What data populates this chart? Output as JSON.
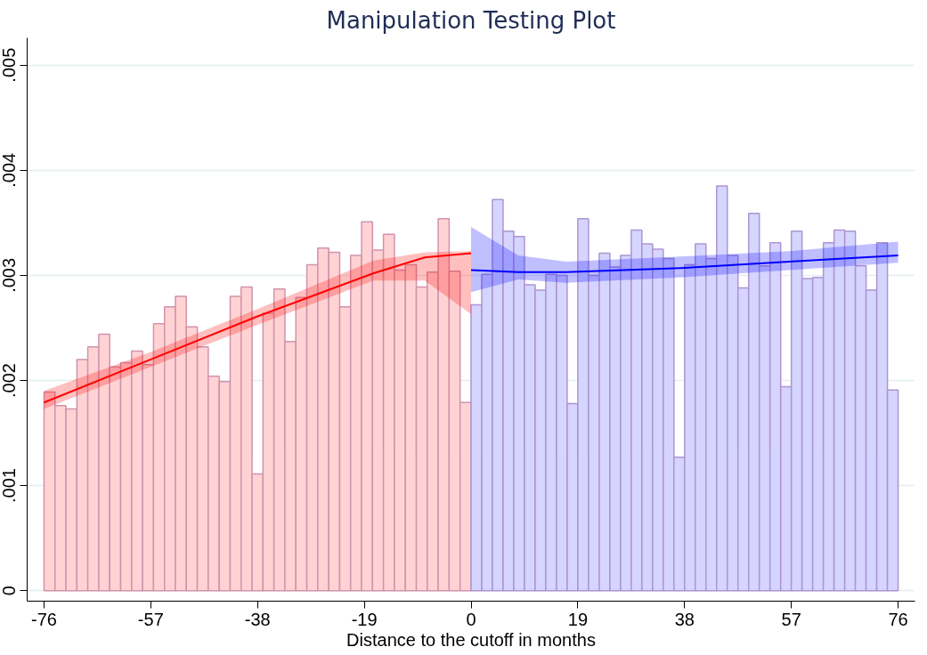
{
  "chart_data": {
    "type": "histogram",
    "title": "Manipulation Testing Plot",
    "xlabel": "Distance to the cutoff in months",
    "xlim": [
      -79,
      79
    ],
    "ylim": [
      -0.0001,
      0.00526
    ],
    "xticks": [
      -76,
      -57,
      -38,
      -19,
      0,
      19,
      38,
      57,
      76
    ],
    "yticks": [
      {
        "value": 0,
        "label": "0"
      },
      {
        "value": 0.001,
        "label": ".001"
      },
      {
        "value": 0.002,
        "label": ".002"
      },
      {
        "value": 0.003,
        "label": ".003"
      },
      {
        "value": 0.004,
        "label": ".004"
      },
      {
        "value": 0.005,
        "label": ".005"
      }
    ],
    "grid": "y",
    "series": [
      {
        "color": "#ffd3d3",
        "bins": [
          -76,
          -74.05,
          -72.1,
          -70.15,
          -68.21,
          -66.26,
          -64.31,
          -62.36,
          -60.41,
          -58.46,
          -56.51,
          -54.56,
          -52.62,
          -50.67,
          -48.72,
          -46.77,
          -44.82,
          -42.87,
          -40.92,
          -38.97,
          -37.03,
          -35.08,
          -33.13,
          -31.18,
          -29.23,
          -27.28,
          -25.33,
          -23.38,
          -21.44,
          -19.49,
          -17.54,
          -15.59,
          -13.64,
          -11.69,
          -9.74,
          -7.79,
          -5.85,
          -3.9,
          -1.95,
          0
        ],
        "values": [
          0.00189,
          0.00176,
          0.00173,
          0.0022,
          0.00232,
          0.00244,
          0.00213,
          0.00217,
          0.00228,
          0.00215,
          0.00254,
          0.0027,
          0.0028,
          0.00251,
          0.00232,
          0.00204,
          0.00199,
          0.0028,
          0.00289,
          0.00111,
          0.00264,
          0.00287,
          0.00237,
          0.00279,
          0.0031,
          0.00326,
          0.00322,
          0.0027,
          0.00319,
          0.00351,
          0.00324,
          0.00339,
          0.00305,
          0.0031,
          0.00289,
          0.00303,
          0.00354,
          0.00304,
          0.00179
        ]
      },
      {
        "color": "#d5d5ff",
        "bins": [
          0,
          1.9,
          3.8,
          5.7,
          7.6,
          9.5,
          11.4,
          13.3,
          15.2,
          17.1,
          19,
          20.9,
          22.8,
          24.7,
          26.6,
          28.5,
          30.4,
          32.3,
          34.2,
          36.1,
          38,
          39.9,
          41.8,
          43.7,
          45.6,
          47.5,
          49.4,
          51.3,
          53.2,
          55.1,
          57,
          58.9,
          60.8,
          62.7,
          64.6,
          66.5,
          68.4,
          70.3,
          72.2,
          74.1,
          76
        ],
        "values": [
          0.00272,
          0.00301,
          0.00372,
          0.00342,
          0.00337,
          0.00291,
          0.00286,
          0.00301,
          0.003,
          0.00178,
          0.00354,
          0.003,
          0.00321,
          0.00308,
          0.00319,
          0.00343,
          0.0033,
          0.00325,
          0.00316,
          0.00127,
          0.0031,
          0.0033,
          0.00316,
          0.00385,
          0.00319,
          0.00288,
          0.00359,
          0.00309,
          0.00331,
          0.00194,
          0.00342,
          0.00297,
          0.00298,
          0.00331,
          0.00343,
          0.00342,
          0.00309,
          0.00286,
          0.00331,
          0.00191
        ]
      },
      {
        "type": "line",
        "color": "#ff0000",
        "x": [
          -76,
          -57,
          -38,
          -17.35,
          -8.25,
          0
        ],
        "values": [
          0.00179,
          0.0022,
          0.00261,
          0.00302,
          0.00317,
          0.00321
        ],
        "lower": [
          0.00173,
          0.00213,
          0.00253,
          0.00295,
          0.00295,
          0.00263
        ],
        "upper": [
          0.0019,
          0.00227,
          0.00268,
          0.00314,
          0.00322,
          0.00323
        ]
      },
      {
        "type": "line",
        "color": "#0000ff",
        "x": [
          0,
          8.4,
          16.9,
          37.3,
          56.6,
          76
        ],
        "values": [
          0.00305,
          0.00303,
          0.00303,
          0.00307,
          0.00313,
          0.00319
        ],
        "lower": [
          0.00284,
          0.00296,
          0.00293,
          0.00298,
          0.00305,
          0.00312
        ],
        "upper": [
          0.00346,
          0.00319,
          0.00313,
          0.00318,
          0.00323,
          0.00332
        ]
      }
    ]
  }
}
